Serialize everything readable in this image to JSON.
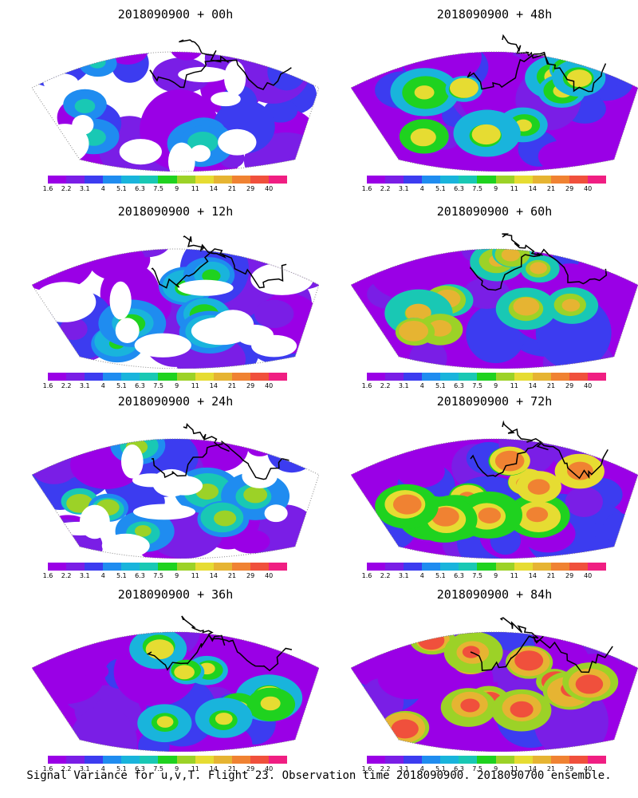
{
  "panels": [
    {
      "title": "2018090900 + 00h",
      "level": 0.15
    },
    {
      "title": "2018090900 + 48h",
      "level": 0.55
    },
    {
      "title": "2018090900 + 12h",
      "level": 0.25
    },
    {
      "title": "2018090900 + 60h",
      "level": 0.65
    },
    {
      "title": "2018090900 + 24h",
      "level": 0.35
    },
    {
      "title": "2018090900 + 72h",
      "level": 0.75
    },
    {
      "title": "2018090900 + 36h",
      "level": 0.45
    },
    {
      "title": "2018090900 + 84h",
      "level": 0.85
    }
  ],
  "colorbar": {
    "labels": [
      "1.6",
      "2.2",
      "3.1",
      "4",
      "5.1",
      "6.3",
      "7.5",
      "9",
      "11",
      "14",
      "21",
      "29",
      "40"
    ],
    "colors": [
      "#9a00e6",
      "#7a1ee6",
      "#3c3cf0",
      "#1f8cf0",
      "#19b4dc",
      "#19c8b4",
      "#1fd21f",
      "#9cd227",
      "#e6dc32",
      "#e6b432",
      "#f08232",
      "#f0503c",
      "#f01e82"
    ]
  },
  "caption": "Signal Variance for u,v,T. Flight 23. Observation time 2018090900. 2018090700 ensemble."
}
